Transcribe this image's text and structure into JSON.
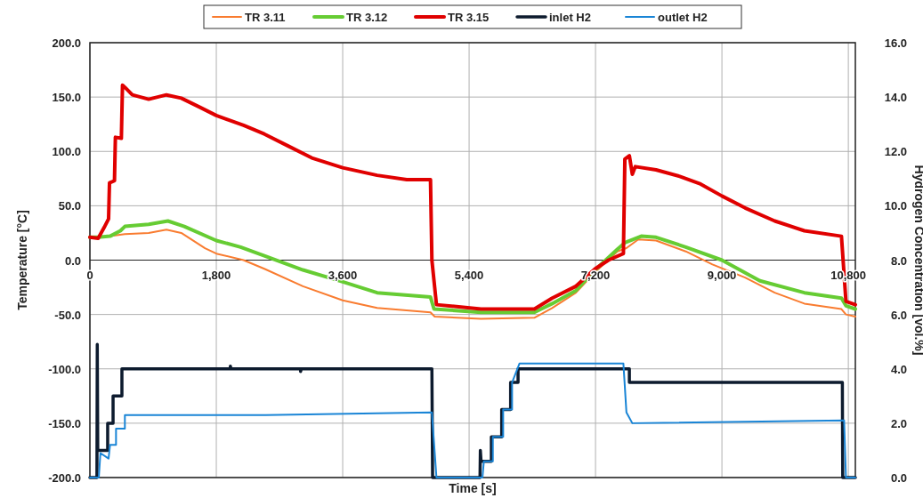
{
  "chart_data": {
    "type": "line",
    "xlabel": "Time [s]",
    "ylabel": "Temperature [°C]",
    "y2label": "Hydrogen Concentration [vol.%]",
    "xlim": [
      0,
      10900
    ],
    "xticks": [
      0,
      {
        "value": 1800,
        "label": "1,800"
      },
      {
        "value": 3600,
        "label": "3,600"
      },
      {
        "value": 5400,
        "label": "5,400"
      },
      {
        "value": 7200,
        "label": "7,200"
      },
      {
        "value": 9000,
        "label": "9,000"
      },
      {
        "value": 10800,
        "label": "10,800"
      }
    ],
    "ylim": [
      -200,
      200
    ],
    "yticks": [
      {
        "value": -200,
        "label": "-200.0"
      },
      {
        "value": -150,
        "label": "-150.0"
      },
      {
        "value": -100,
        "label": "-100.0"
      },
      {
        "value": -50,
        "label": "-50.0"
      },
      {
        "value": 0,
        "label": "0.0"
      },
      {
        "value": 50,
        "label": "50.0"
      },
      {
        "value": 100,
        "label": "100.0"
      },
      {
        "value": 150,
        "label": "150.0"
      },
      {
        "value": 200,
        "label": "200.0"
      }
    ],
    "y2lim": [
      0,
      16
    ],
    "y2ticks": [
      {
        "value": 0,
        "label": "0.0"
      },
      {
        "value": 2,
        "label": "2.0"
      },
      {
        "value": 4,
        "label": "4.0"
      },
      {
        "value": 6,
        "label": "6.0"
      },
      {
        "value": 8,
        "label": "8.0"
      },
      {
        "value": 10,
        "label": "10.0"
      },
      {
        "value": 12,
        "label": "12.0"
      },
      {
        "value": 14,
        "label": "14.0"
      },
      {
        "value": 16,
        "label": "16.0"
      }
    ],
    "grid": true,
    "legend": "top",
    "marker": "none",
    "line_style": "solid",
    "series": [
      {
        "name": "TR 3.11",
        "color": "#f97c30",
        "x": [
          0,
          120,
          287,
          498,
          837,
          1090,
          1301,
          1639,
          1800,
          2188,
          2484,
          3033,
          3600,
          4090,
          4850,
          4910,
          5569,
          6329,
          6583,
          6921,
          7195,
          7512,
          7640,
          7809,
          8062,
          8485,
          8865,
          9330,
          9752,
          10174,
          10702,
          10766,
          10900
        ],
        "values": [
          21,
          21,
          22,
          24,
          25,
          28,
          25,
          11,
          6,
          0,
          -8,
          -24,
          -37,
          -44,
          -48,
          -52,
          -54,
          -53,
          -44,
          -30,
          -11,
          8,
          11,
          19,
          18,
          8,
          -4,
          -16,
          -30,
          -40,
          -45,
          -50,
          -52
        ]
      },
      {
        "name": "TR 3.12",
        "color": "#66cc33",
        "x": [
          0,
          120,
          287,
          435,
          498,
          837,
          1111,
          1344,
          1800,
          2146,
          2484,
          3033,
          3600,
          4090,
          4850,
          4900,
          5569,
          6329,
          6583,
          6921,
          7195,
          7512,
          7618,
          7851,
          8062,
          8485,
          9000,
          9540,
          10174,
          10702,
          10766,
          10900
        ],
        "values": [
          21,
          21,
          22,
          27,
          31,
          33,
          36,
          31,
          18,
          12,
          4,
          -9,
          -20,
          -30,
          -34,
          -45,
          -48,
          -48,
          -40,
          -28,
          -9,
          10,
          16,
          22,
          21,
          12,
          0,
          -19,
          -30,
          -35,
          -42,
          -45
        ]
      },
      {
        "name": "TR 3.15",
        "color": "#e00000",
        "x": [
          0,
          118,
          203,
          266,
          279,
          350,
          363,
          448,
          464,
          498,
          604,
          837,
          1090,
          1301,
          1554,
          1800,
          2188,
          2484,
          2822,
          3160,
          3600,
          4090,
          4512,
          4850,
          4870,
          4935,
          5569,
          6329,
          6583,
          6921,
          7195,
          7385,
          7597,
          7618,
          7682,
          7724,
          7766,
          8062,
          8400,
          8696,
          9000,
          9330,
          9752,
          10174,
          10702,
          10766,
          10900
        ],
        "values": [
          21,
          20,
          30,
          38,
          71,
          73,
          113,
          112,
          161,
          159,
          152,
          148,
          152,
          149,
          141,
          133,
          124,
          116,
          105,
          94,
          85,
          78,
          74,
          74,
          0,
          -41,
          -45,
          -45,
          -35,
          -24,
          -8,
          0,
          6,
          93,
          96,
          79,
          86,
          83,
          77,
          70,
          59,
          48,
          36,
          27,
          22,
          -38,
          -41
        ]
      },
      {
        "name": "inlet H2",
        "color": "#0d1b2e",
        "axis": "y2",
        "x": [
          0,
          100,
          105,
          112,
          253,
          253,
          330,
          330,
          456,
          456,
          2000,
          2000,
          2010,
          3000,
          3000,
          3010,
          4870,
          4880,
          5555,
          5560,
          5570,
          5590,
          5717,
          5717,
          5864,
          5864,
          5991,
          5991,
          6097,
          6097,
          7682,
          7682,
          10715,
          10720,
          10900
        ],
        "values": [
          0,
          0,
          4.9,
          1.0,
          1.0,
          2.0,
          2.0,
          3.0,
          3.0,
          4.0,
          4.0,
          4.1,
          4.0,
          4.0,
          3.9,
          4.0,
          4.0,
          0,
          0,
          1.0,
          0.6,
          0.6,
          0.6,
          1.5,
          1.5,
          2.5,
          2.5,
          3.5,
          3.5,
          4.0,
          4.0,
          3.5,
          3.5,
          0,
          0
        ]
      },
      {
        "name": "outlet H2",
        "color": "#1a85d6",
        "axis": "y2",
        "x": [
          0,
          127,
          150,
          266,
          287,
          372,
          372,
          498,
          498,
          2500,
          4870,
          4935,
          5590,
          5610,
          5738,
          5738,
          5885,
          5885,
          6012,
          6012,
          6118,
          7597,
          7640,
          7724,
          10740,
          10766,
          10900
        ],
        "values": [
          0,
          0,
          0.9,
          0.7,
          1.2,
          1.2,
          1.8,
          1.8,
          2.3,
          2.3,
          2.4,
          0,
          0,
          0.6,
          0.6,
          1.5,
          1.5,
          2.5,
          2.5,
          3.5,
          4.2,
          4.2,
          2.4,
          2.0,
          2.1,
          0,
          0
        ]
      }
    ]
  }
}
